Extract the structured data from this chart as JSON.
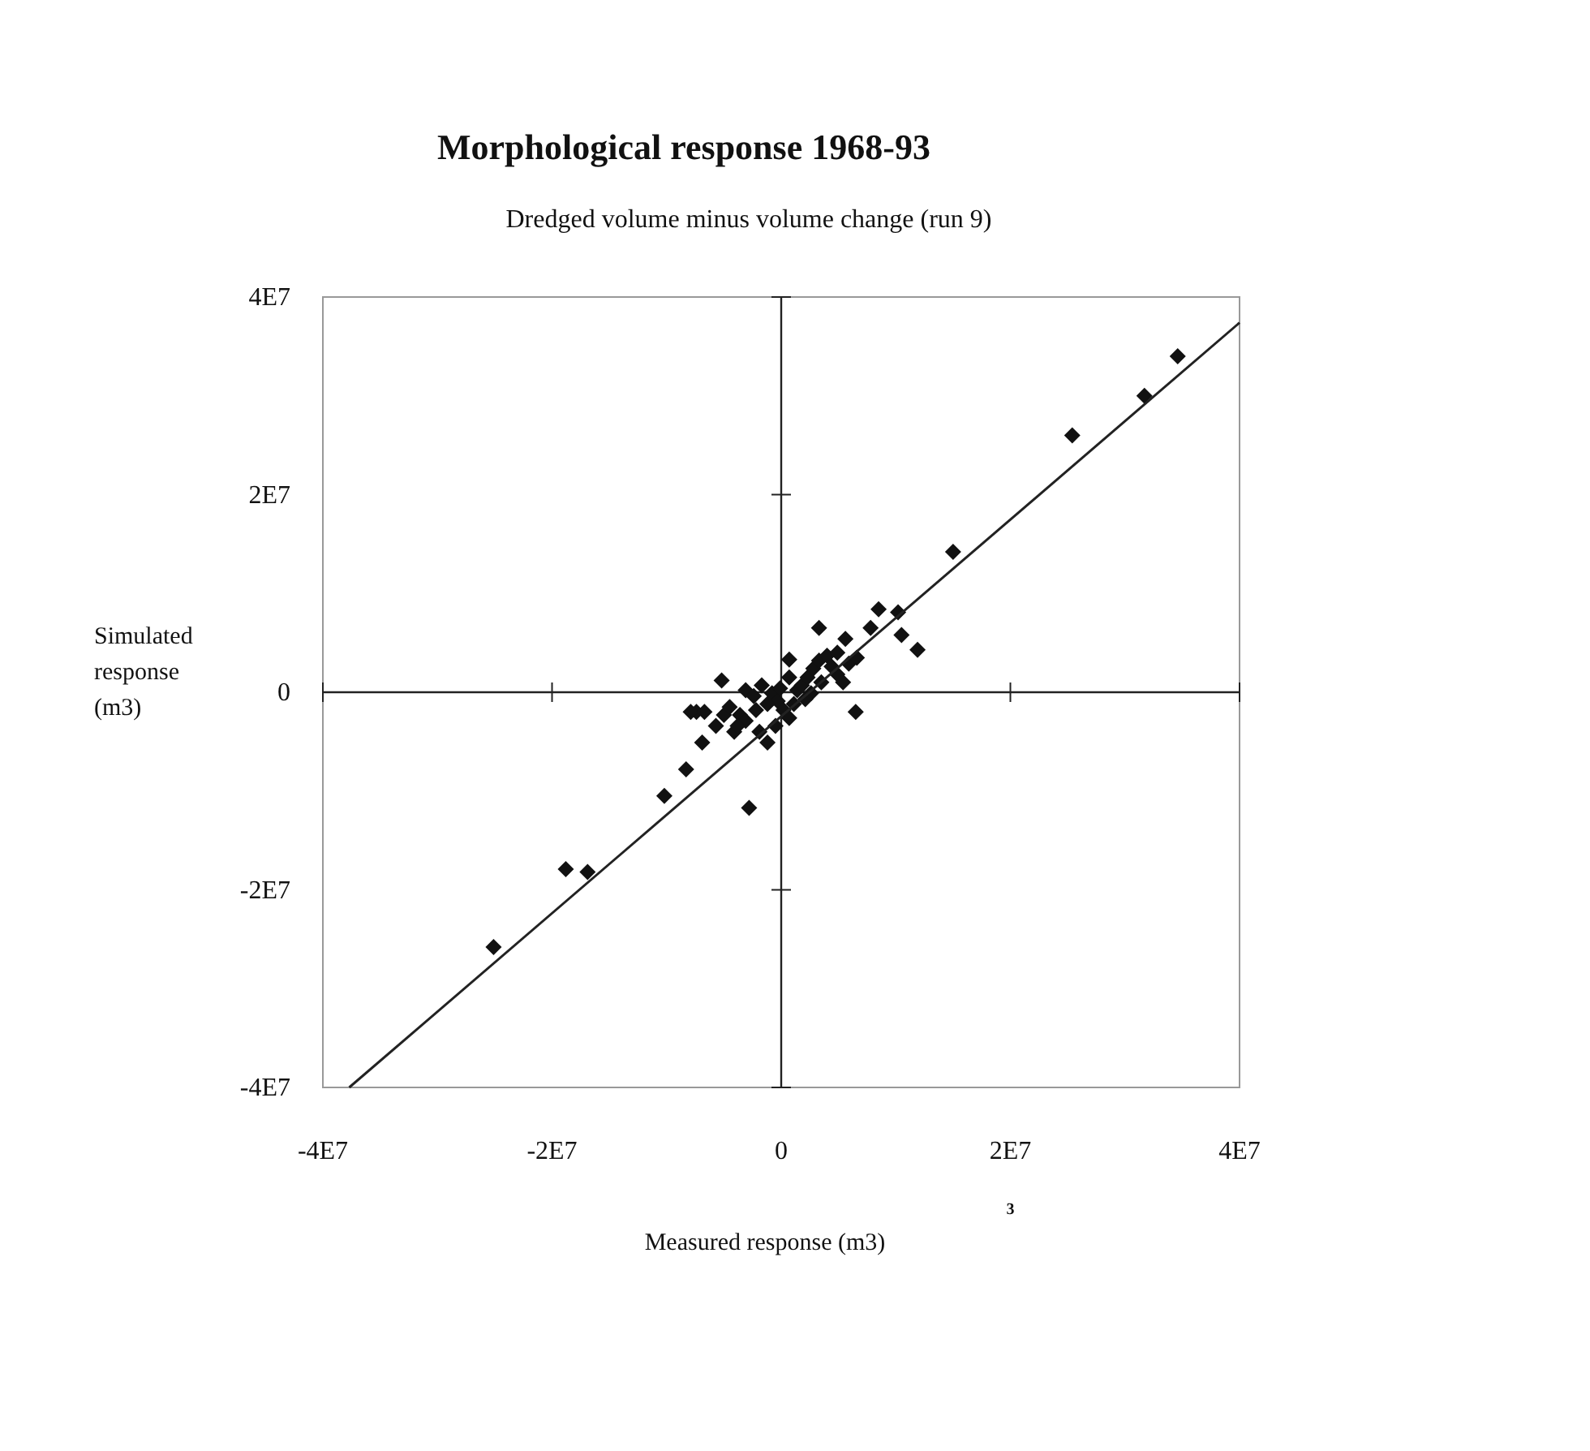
{
  "chart_data": {
    "type": "scatter",
    "title": "Morphological response 1968-93",
    "subtitle": "Dredged volume minus volume change (run 9)",
    "xlabel": "Measured response (m3)",
    "ylabel": "Simulated response (m3)",
    "annotations": [
      "3"
    ],
    "xlim": [
      -40000000,
      40000000
    ],
    "ylim": [
      -40000000,
      40000000
    ],
    "xticks": [
      {
        "value": -40000000,
        "label": "-4E7"
      },
      {
        "value": -20000000,
        "label": "-2E7"
      },
      0,
      {
        "value": 20000000,
        "label": "2E7"
      },
      {
        "value": 40000000,
        "label": "4E7"
      }
    ],
    "yticks": [
      {
        "value": -40000000,
        "label": "-4E7"
      },
      {
        "value": -20000000,
        "label": "-2E7"
      },
      0,
      {
        "value": 20000000,
        "label": "2E7"
      },
      {
        "value": 40000000,
        "label": "4E7"
      }
    ],
    "series": [
      {
        "color": "#111111",
        "marker": "diamond",
        "x": [
          34600000,
          31700000,
          25400000,
          15000000,
          8500000,
          10200000,
          7800000,
          10500000,
          11900000,
          3300000,
          5600000,
          700000,
          6500000,
          -5200000,
          -2800000,
          -10200000,
          -8300000,
          -6900000,
          -7400000,
          -1200000,
          -4100000,
          -3600000,
          -18800000,
          -16900000,
          -25100000,
          -7900000,
          -6700000,
          -5000000,
          -4500000,
          -3100000,
          -1700000,
          -2400000,
          -800000,
          -300000,
          200000,
          700000,
          1100000,
          1400000,
          1800000,
          2300000,
          2800000,
          3300000,
          4000000,
          4400000,
          4900000,
          5400000,
          3500000,
          2600000,
          2100000,
          700000,
          -100000,
          -1200000,
          -2200000,
          -3100000,
          -3800000,
          -500000,
          4900000,
          5900000,
          6600000,
          -5700000,
          -1900000
        ],
        "values": [
          34000000,
          30000000,
          26000000,
          14200000,
          8400000,
          8100000,
          6500000,
          5800000,
          4300000,
          6500000,
          5400000,
          3300000,
          -2000000,
          1200000,
          -11700000,
          -10500000,
          -7800000,
          -5100000,
          -2000000,
          -5100000,
          -4000000,
          -2300000,
          -17900000,
          -18200000,
          -25800000,
          -2000000,
          -2000000,
          -2300000,
          -1500000,
          200000,
          700000,
          -400000,
          -100000,
          -900000,
          -1800000,
          -2600000,
          -1200000,
          200000,
          700000,
          1500000,
          2400000,
          3200000,
          3700000,
          2600000,
          1800000,
          1000000,
          1000000,
          -100000,
          -700000,
          1500000,
          400000,
          -1200000,
          -1800000,
          -2900000,
          -3400000,
          -3400000,
          4000000,
          2900000,
          3500000,
          -3400000,
          -4000000
        ]
      },
      {
        "type": "line",
        "color": "#222222",
        "x": [
          -37700000,
          40000000
        ],
        "values": [
          -40000000,
          37400000
        ]
      }
    ]
  }
}
